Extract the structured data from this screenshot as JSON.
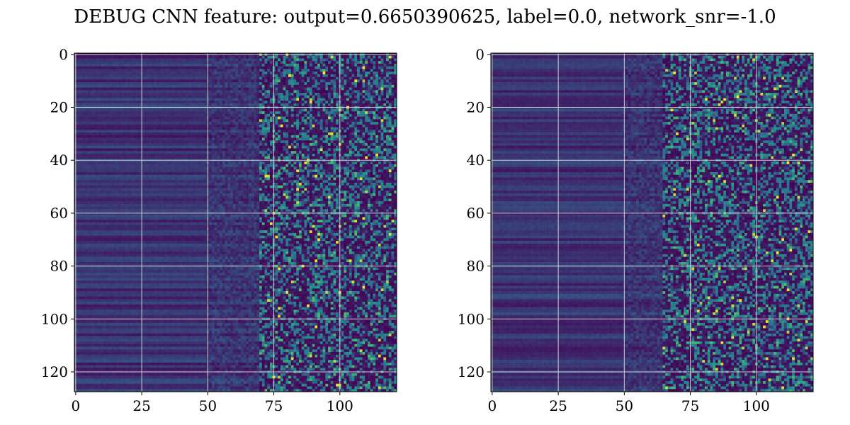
{
  "title": "DEBUG CNN feature: output=0.6650390625, label=0.0, network_snr=-1.0",
  "chart_data": [
    {
      "type": "heatmap",
      "panel": "left",
      "colormap": "viridis",
      "xlim": [
        0,
        121
      ],
      "ylim": [
        0,
        127
      ],
      "y_inverted": true,
      "grid": true,
      "xticks": [
        0,
        25,
        50,
        75,
        100
      ],
      "yticks": [
        0,
        20,
        40,
        60,
        80,
        100,
        120
      ],
      "n_cols": 122,
      "n_rows": 128,
      "low_value_region_end_col": 50,
      "noisy_region_start_col": 70,
      "colors": {
        "low": "#440154",
        "mid": "#31688e",
        "teal": "#21918c",
        "green": "#5ec962",
        "high": "#fde725"
      }
    },
    {
      "type": "heatmap",
      "panel": "right",
      "colormap": "viridis",
      "xlim": [
        0,
        121
      ],
      "ylim": [
        0,
        127
      ],
      "y_inverted": true,
      "grid": true,
      "xticks": [
        0,
        25,
        50,
        75,
        100
      ],
      "yticks": [
        0,
        20,
        40,
        60,
        80,
        100,
        120
      ],
      "n_cols": 122,
      "n_rows": 128,
      "low_value_region_end_col": 50,
      "noisy_region_start_col": 65,
      "colors": {
        "low": "#440154",
        "mid": "#31688e",
        "teal": "#21918c",
        "green": "#5ec962",
        "high": "#fde725"
      }
    }
  ]
}
